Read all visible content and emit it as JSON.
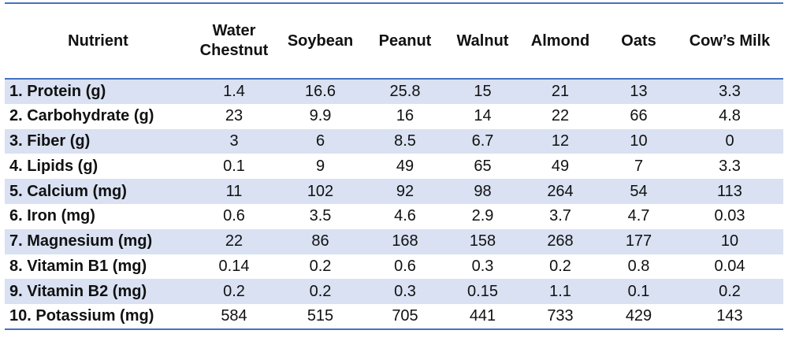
{
  "table": {
    "headers": [
      "Nutrient",
      "Water Chestnut",
      "Soybean",
      "Peanut",
      "Walnut",
      "Almond",
      "Oats",
      "Cow’s Milk"
    ],
    "rows": [
      [
        "1. Protein (g)",
        "1.4",
        "16.6",
        "25.8",
        "15",
        "21",
        "13",
        "3.3"
      ],
      [
        "2. Carbohydrate (g)",
        "23",
        "9.9",
        "16",
        "14",
        "22",
        "66",
        "4.8"
      ],
      [
        "3. Fiber (g)",
        "3",
        "6",
        "8.5",
        "6.7",
        "12",
        "10",
        "0"
      ],
      [
        "4. Lipids (g)",
        "0.1",
        "9",
        "49",
        "65",
        "49",
        "7",
        "3.3"
      ],
      [
        "5. Calcium (mg)",
        "11",
        "102",
        "92",
        "98",
        "264",
        "54",
        "113"
      ],
      [
        "6. Iron (mg)",
        "0.6",
        "3.5",
        "4.6",
        "2.9",
        "3.7",
        "4.7",
        "0.03"
      ],
      [
        "7. Magnesium (mg)",
        "22",
        "86",
        "168",
        "158",
        "268",
        "177",
        "10"
      ],
      [
        "8. Vitamin B1 (mg)",
        "0.14",
        "0.2",
        "0.6",
        "0.3",
        "0.2",
        "0.8",
        "0.04"
      ],
      [
        "9. Vitamin B2 (mg)",
        "0.2",
        "0.2",
        "0.3",
        "0.15",
        "1.1",
        "0.1",
        "0.2"
      ],
      [
        "10. Potassium (mg)",
        "584",
        "515",
        "705",
        "441",
        "733",
        "429",
        "143"
      ]
    ]
  },
  "colors": {
    "rule": "#4472c4",
    "stripe": "#d9e1f2",
    "background": "#ffffff"
  }
}
